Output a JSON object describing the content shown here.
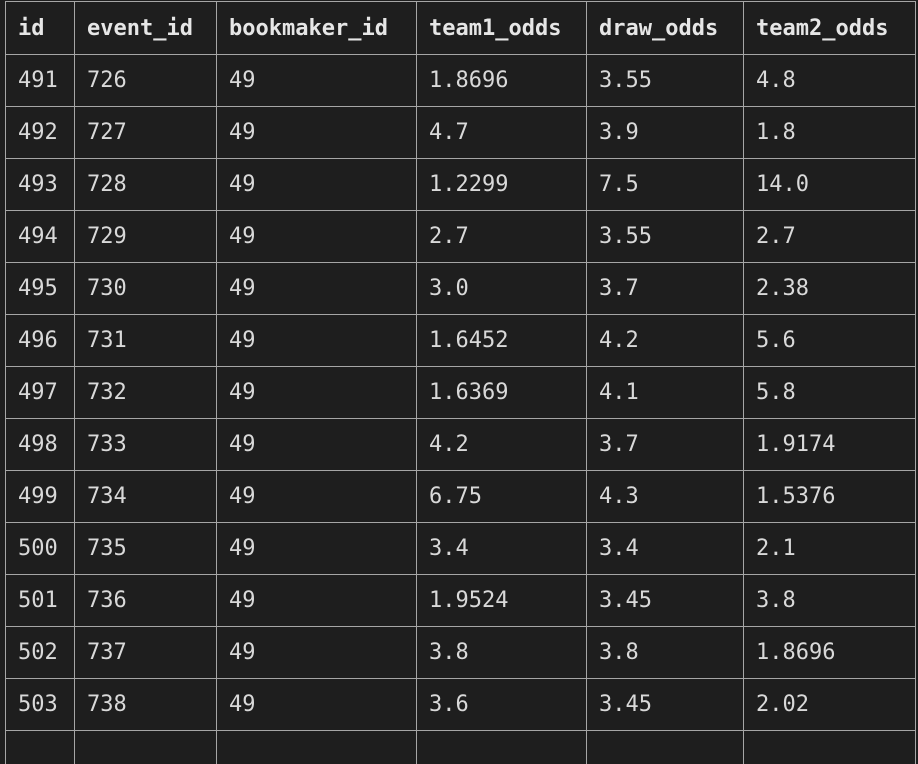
{
  "table": {
    "columns": [
      "id",
      "event_id",
      "bookmaker_id",
      "team1_odds",
      "draw_odds",
      "team2_odds"
    ],
    "rows": [
      [
        "491",
        "726",
        "49",
        "1.8696",
        "3.55",
        "4.8"
      ],
      [
        "492",
        "727",
        "49",
        "4.7",
        "3.9",
        "1.8"
      ],
      [
        "493",
        "728",
        "49",
        "1.2299",
        "7.5",
        "14.0"
      ],
      [
        "494",
        "729",
        "49",
        "2.7",
        "3.55",
        "2.7"
      ],
      [
        "495",
        "730",
        "49",
        "3.0",
        "3.7",
        "2.38"
      ],
      [
        "496",
        "731",
        "49",
        "1.6452",
        "4.2",
        "5.6"
      ],
      [
        "497",
        "732",
        "49",
        "1.6369",
        "4.1",
        "5.8"
      ],
      [
        "498",
        "733",
        "49",
        "4.2",
        "3.7",
        "1.9174"
      ],
      [
        "499",
        "734",
        "49",
        "6.75",
        "4.3",
        "1.5376"
      ],
      [
        "500",
        "735",
        "49",
        "3.4",
        "3.4",
        "2.1"
      ],
      [
        "501",
        "736",
        "49",
        "1.9524",
        "3.45",
        "3.8"
      ],
      [
        "502",
        "737",
        "49",
        "3.8",
        "3.8",
        "1.8696"
      ],
      [
        "503",
        "738",
        "49",
        "3.6",
        "3.45",
        "2.02"
      ]
    ]
  }
}
